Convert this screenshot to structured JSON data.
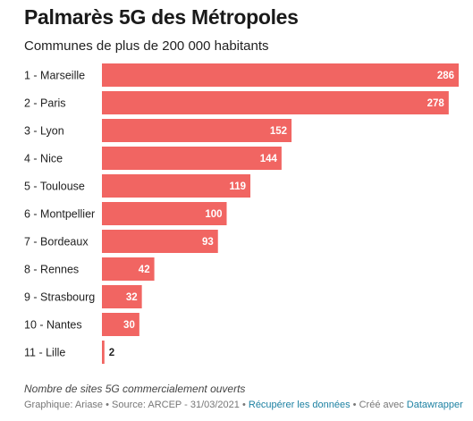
{
  "chart_data": {
    "type": "bar",
    "orientation": "horizontal",
    "title": "Palmarès 5G des Métropoles",
    "subtitle": "Communes de plus de 200 000 habitants",
    "categories": [
      "1 - Marseille",
      "2 - Paris",
      "3 - Lyon",
      "4 - Nice",
      "5 - Toulouse",
      "6 - Montpellier",
      "7 - Bordeaux",
      "8 - Rennes",
      "9 - Strasbourg",
      "10 - Nantes",
      "11 - Lille"
    ],
    "values": [
      286,
      278,
      152,
      144,
      119,
      100,
      93,
      42,
      32,
      30,
      2
    ],
    "xlim": [
      0,
      286
    ],
    "bar_color": "#f16562",
    "grid": false,
    "notes": "Nombre de sites 5G commercialement ouverts"
  },
  "footer": {
    "credit": "Graphique: Ariase • Source: ARCEP - 31/03/2021 • ",
    "get_data": "Récupérer les données",
    "sep": " • Créé avec ",
    "made_with": "Datawrapper"
  }
}
